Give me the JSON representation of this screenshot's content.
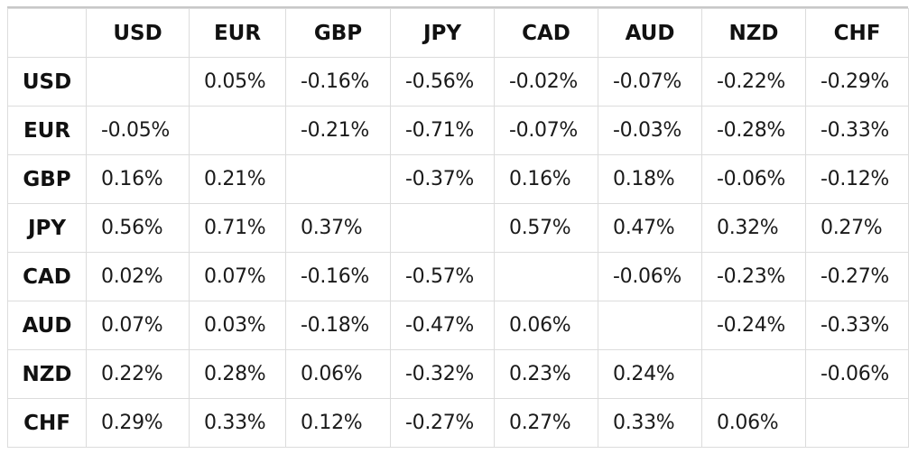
{
  "table": {
    "columns": [
      "USD",
      "EUR",
      "GBP",
      "JPY",
      "CAD",
      "AUD",
      "NZD",
      "CHF"
    ],
    "rows": [
      {
        "label": "USD",
        "cells": [
          "",
          "0.05%",
          "-0.16%",
          "-0.56%",
          "-0.02%",
          "-0.07%",
          "-0.22%",
          "-0.29%"
        ]
      },
      {
        "label": "EUR",
        "cells": [
          "-0.05%",
          "",
          "-0.21%",
          "-0.71%",
          "-0.07%",
          "-0.03%",
          "-0.28%",
          "-0.33%"
        ]
      },
      {
        "label": "GBP",
        "cells": [
          "0.16%",
          "0.21%",
          "",
          "-0.37%",
          "0.16%",
          "0.18%",
          "-0.06%",
          "-0.12%"
        ]
      },
      {
        "label": "JPY",
        "cells": [
          "0.56%",
          "0.71%",
          "0.37%",
          "",
          "0.57%",
          "0.47%",
          "0.32%",
          "0.27%"
        ]
      },
      {
        "label": "CAD",
        "cells": [
          "0.02%",
          "0.07%",
          "-0.16%",
          "-0.57%",
          "",
          "-0.06%",
          "-0.23%",
          "-0.27%"
        ]
      },
      {
        "label": "AUD",
        "cells": [
          "0.07%",
          "0.03%",
          "-0.18%",
          "-0.47%",
          "0.06%",
          "",
          "-0.24%",
          "-0.33%"
        ]
      },
      {
        "label": "NZD",
        "cells": [
          "0.22%",
          "0.28%",
          "0.06%",
          "-0.32%",
          "0.23%",
          "0.24%",
          "",
          "-0.06%"
        ]
      },
      {
        "label": "CHF",
        "cells": [
          "0.29%",
          "0.33%",
          "0.12%",
          "-0.27%",
          "0.27%",
          "0.33%",
          "0.06%",
          ""
        ]
      }
    ]
  }
}
